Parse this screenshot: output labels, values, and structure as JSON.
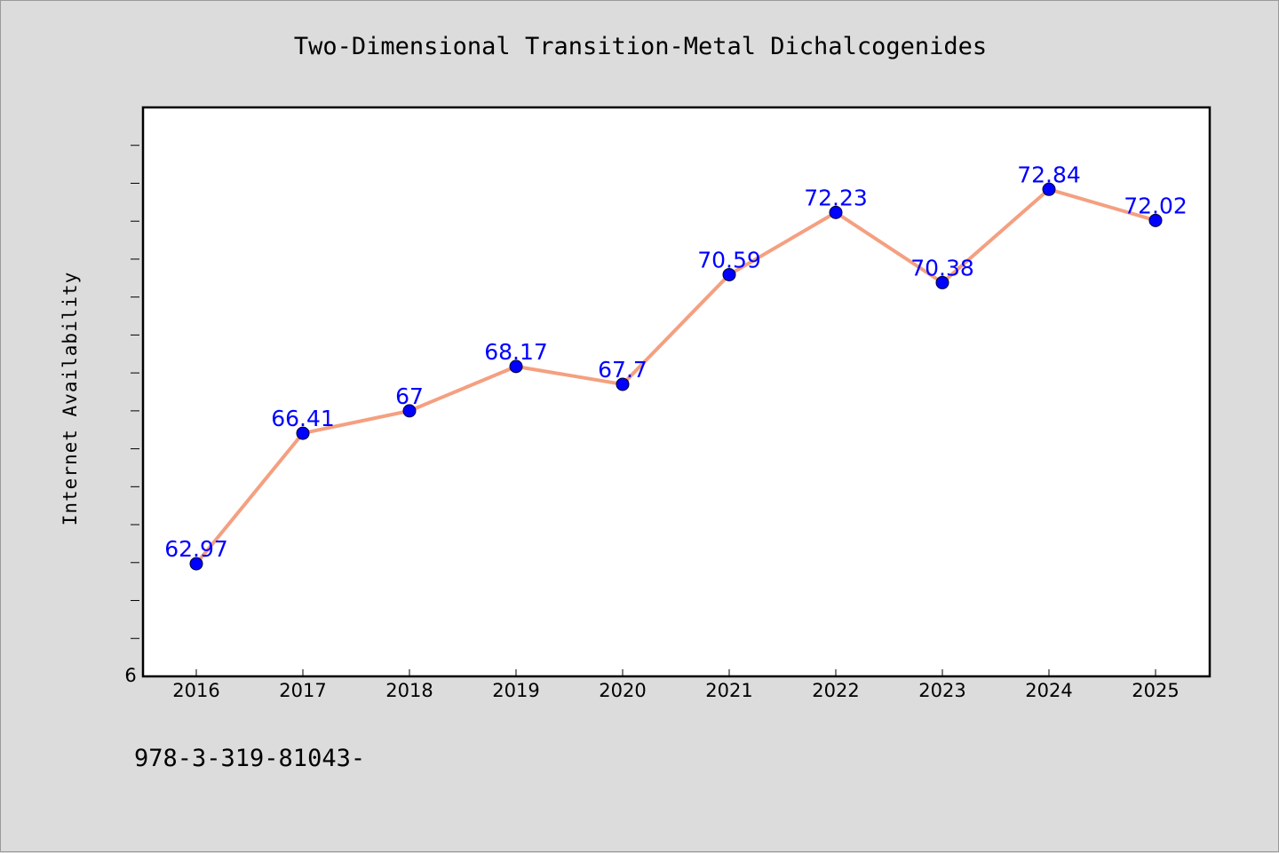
{
  "chart_data": {
    "type": "line",
    "title": "Two-Dimensional Transition-Metal Dichalcogenides",
    "xlabel": "",
    "ylabel": "Internet Availability",
    "x": [
      "2016",
      "2017",
      "2018",
      "2019",
      "2020",
      "2021",
      "2022",
      "2023",
      "2024",
      "2025"
    ],
    "series": [
      {
        "values": [
          62.97,
          66.41,
          67,
          68.17,
          67.7,
          70.59,
          72.23,
          70.38,
          72.84,
          72.02
        ],
        "labels": [
          "62.97",
          "66.41",
          "67",
          "68.17",
          "67.7",
          "70.59",
          "72.23",
          "70.38",
          "72.84",
          "72.02"
        ],
        "line_color": "#f4a080",
        "marker_color": "#0000ff"
      }
    ],
    "ylim": [
      60,
      75
    ],
    "ytick_label_shown": "6",
    "grid": false,
    "legend": "none"
  },
  "footer": {
    "isbn_text": "978-3-319-81043-"
  }
}
